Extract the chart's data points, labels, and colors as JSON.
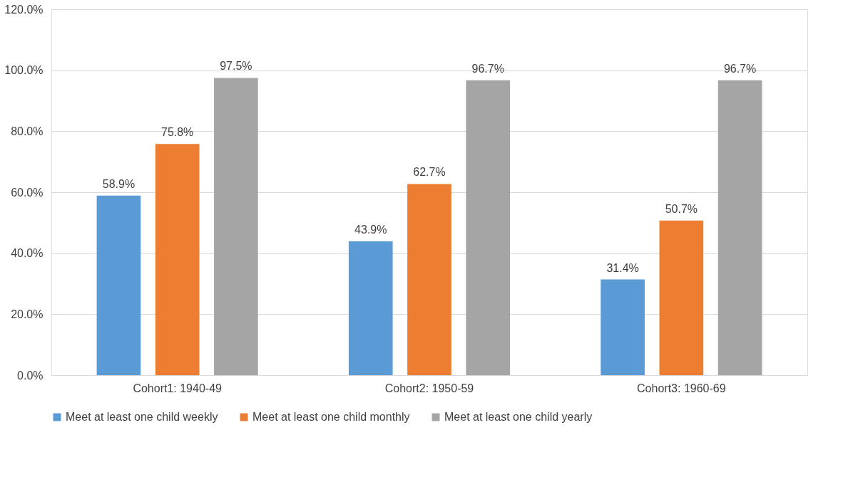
{
  "chart_data": {
    "type": "bar",
    "categories": [
      "Cohort1: 1940-49",
      "Cohort2: 1950-59",
      "Cohort3: 1960-69"
    ],
    "series": [
      {
        "name": "Meet at least one child weekly",
        "color": "#5b9bd5",
        "values": [
          58.9,
          43.9,
          31.4
        ],
        "value_labels": [
          "58.9%",
          "43.9%",
          "31.4%"
        ]
      },
      {
        "name": "Meet at least one child monthly",
        "color": "#ed7d31",
        "values": [
          75.8,
          62.7,
          50.7
        ],
        "value_labels": [
          "75.8%",
          "62.7%",
          "50.7%"
        ]
      },
      {
        "name": "Meet at least one child yearly",
        "color": "#a5a5a5",
        "values": [
          97.5,
          96.7,
          96.7
        ],
        "value_labels": [
          "97.5%",
          "96.7%",
          "96.7%"
        ]
      }
    ],
    "ylim": [
      0,
      120
    ],
    "yticks": [
      {
        "value": 0,
        "label": "0.0%"
      },
      {
        "value": 20,
        "label": "20.0%"
      },
      {
        "value": 40,
        "label": "40.0%"
      },
      {
        "value": 60,
        "label": "60.0%"
      },
      {
        "value": 80,
        "label": "80.0%"
      },
      {
        "value": 100,
        "label": "100.0%"
      },
      {
        "value": 120,
        "label": "120.0%"
      }
    ],
    "grid": "y",
    "legend": "bottom"
  }
}
